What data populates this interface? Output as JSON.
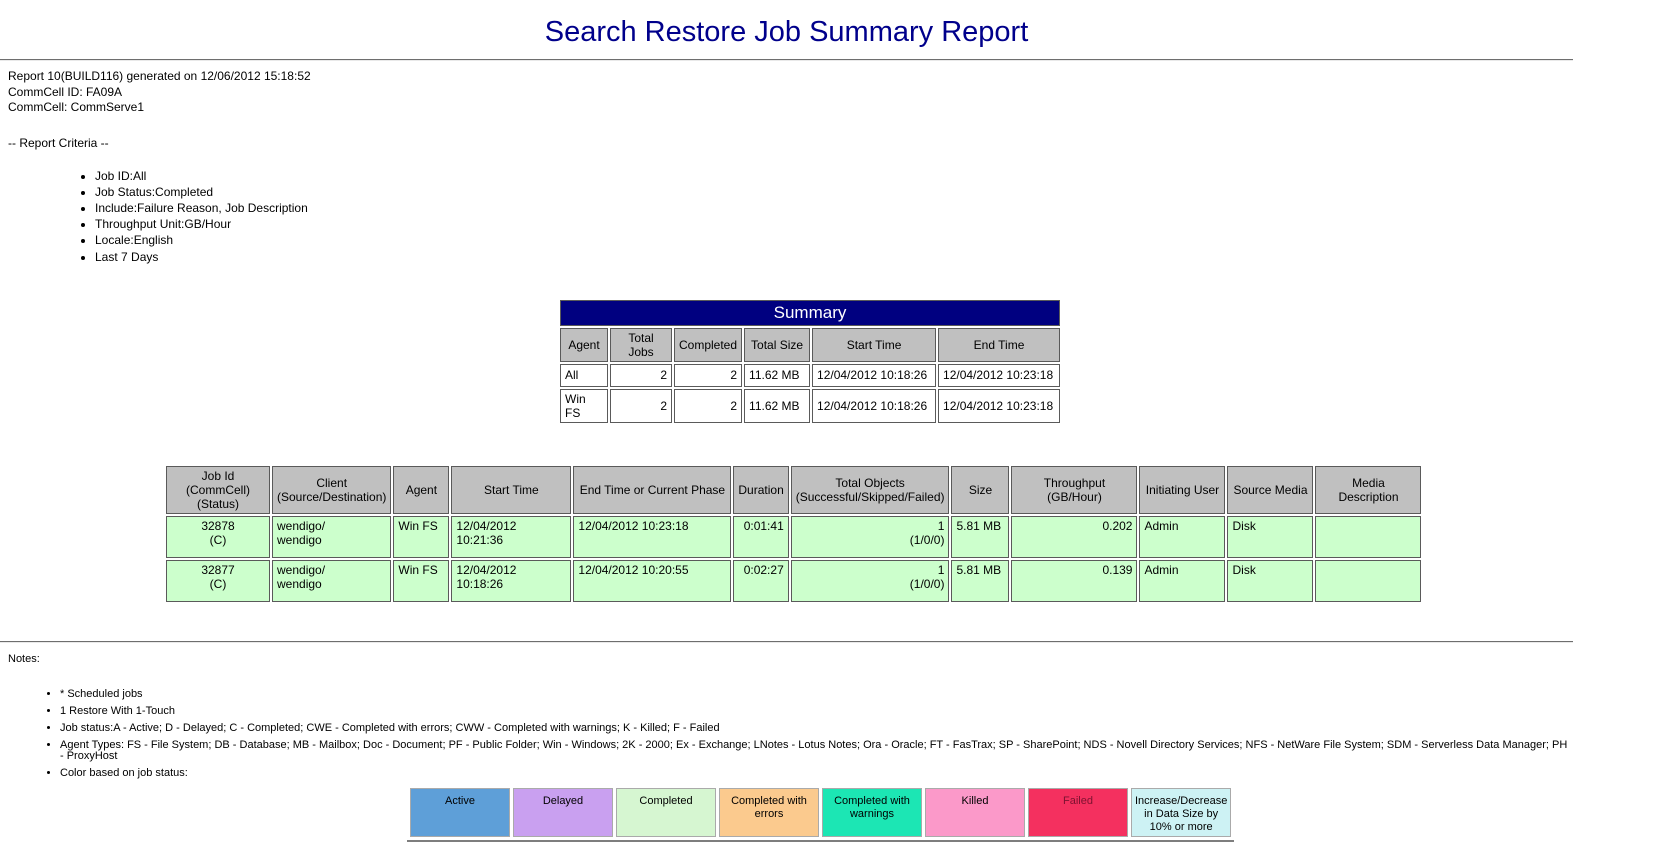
{
  "page": {
    "title": "Search Restore Job Summary Report"
  },
  "report_info": {
    "line1": "Report 10(BUILD116) generated on 12/06/2012 15:18:52",
    "line2": "CommCell ID: FA09A",
    "line3": "CommCell: CommServe1"
  },
  "criteria": {
    "heading": "-- Report Criteria --",
    "items": [
      "Job ID:All",
      "Job Status:Completed",
      "Include:Failure Reason, Job Description",
      "Throughput Unit:GB/Hour",
      "Locale:English",
      "Last 7 Days"
    ]
  },
  "summary_table": {
    "caption": "Summary",
    "headers": [
      "Agent",
      "Total Jobs",
      "Completed",
      "Total Size",
      "Start Time",
      "End Time"
    ],
    "rows": [
      [
        "All",
        "2",
        "2",
        "11.62 MB",
        "12/04/2012 10:18:26",
        "12/04/2012 10:23:18"
      ],
      [
        "Win FS",
        "2",
        "2",
        "11.62 MB",
        "12/04/2012 10:18:26",
        "12/04/2012 10:23:18"
      ]
    ]
  },
  "jobs_table": {
    "headers": [
      "Job Id (CommCell)\n(Status)",
      "Client\n(Source/Destination)",
      "Agent",
      "Start Time",
      "End Time or Current Phase",
      "Duration",
      "Total Objects\n(Successful/Skipped/Failed)",
      "Size",
      "Throughput (GB/Hour)",
      "Initiating User",
      "Source Media",
      "Media Description"
    ],
    "rows": [
      [
        "32878\n(C)",
        "wendigo/\nwendigo",
        "Win FS",
        "12/04/2012 10:21:36",
        "12/04/2012 10:23:18",
        "0:01:41",
        "1\n(1/0/0)",
        "5.81 MB",
        "0.202",
        "Admin",
        "Disk",
        ""
      ],
      [
        "32877\n(C)",
        "wendigo/\nwendigo",
        "Win FS",
        "12/04/2012 10:18:26",
        "12/04/2012 10:20:55",
        "0:02:27",
        "1\n(1/0/0)",
        "5.81 MB",
        "0.139",
        "Admin",
        "Disk",
        ""
      ]
    ]
  },
  "notes": {
    "heading": "Notes:",
    "items": [
      "* Scheduled jobs",
      "1 Restore With 1-Touch",
      "Job status:A - Active; D - Delayed; C - Completed; CWE - Completed with errors; CWW - Completed with warnings; K - Killed; F - Failed",
      "Agent Types: FS - File System; DB - Database; MB - Mailbox; Doc - Document; PF - Public Folder; Win - Windows; 2K - 2000; Ex - Exchange; LNotes - Lotus Notes; Ora - Oracle; FT - FasTrax; SP - SharePoint; NDS - Novell Directory Services; NFS - NetWare File System; SDM - Serverless Data Manager; PH - ProxyHost",
      "Color based on job status:"
    ]
  },
  "legend": {
    "cells": [
      {
        "label": "Active",
        "color": "#5e9fd8",
        "text_color": "#000000"
      },
      {
        "label": "Delayed",
        "color": "#c9a0f0",
        "text_color": "#000000"
      },
      {
        "label": "Completed",
        "color": "#d6f6d1",
        "text_color": "#000000"
      },
      {
        "label": "Completed with errors",
        "color": "#fbca8e",
        "text_color": "#000000"
      },
      {
        "label": "Completed with warnings",
        "color": "#1ce6b4",
        "text_color": "#000000"
      },
      {
        "label": "Killed",
        "color": "#fb99c9",
        "text_color": "#000000"
      },
      {
        "label": "Failed",
        "color": "#f4305f",
        "text_color": "#7d1230"
      },
      {
        "label": "Increase/Decrease in Data Size by 10% or more",
        "color": "#cdf2f4",
        "text_color": "#000000"
      }
    ]
  },
  "colors": {
    "title_navy": "#00008b",
    "table_caption_bg": "#000080",
    "table_caption_text": "#ffffff",
    "table_header_gray": "#c0c0c0",
    "completed_row_green": "#ccffcc"
  }
}
